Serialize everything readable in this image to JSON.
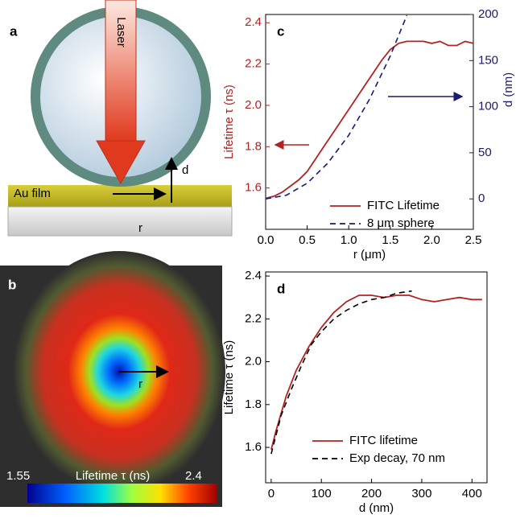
{
  "diagram": {
    "label": "a",
    "laser": "Laser",
    "d": "d",
    "film": "Au film",
    "r": "r"
  },
  "image": {
    "label": "b",
    "r": "r",
    "colorbar_min": 1.55,
    "colorbar_title": "Lifetime τ (ns)",
    "colorbar_max": 2.4
  },
  "chart_data": [
    {
      "type": "line",
      "panel_label": "c",
      "xlabel": "r (μm)",
      "ylabel": "Lifetime τ (ns)",
      "y2label": "d (nm)",
      "y_axis_color": "#b22222",
      "y2_axis_color": "#1a1a6e",
      "xlim": [
        0,
        2.5
      ],
      "xticks": [
        {
          "value": 0,
          "label": "0.0"
        },
        0.5,
        {
          "value": 1,
          "label": "1.0"
        },
        1.5,
        {
          "value": 2,
          "label": "2.0"
        },
        2.5
      ],
      "ylim": [
        1.4,
        2.44
      ],
      "yticks": [
        1.6,
        1.8,
        {
          "value": 2,
          "label": "2.0"
        },
        2.2,
        2.4
      ],
      "y2lim": [
        -33,
        200
      ],
      "y2ticks": [
        0,
        50,
        100,
        150,
        200
      ],
      "legend": "lower right",
      "series": [
        {
          "name": "FITC Lifetime",
          "color": "#b22222",
          "dashed": false,
          "axis": "y",
          "x": [
            0,
            0.1,
            0.2,
            0.3,
            0.4,
            0.5,
            0.6,
            0.7,
            0.8,
            0.9,
            1.0,
            1.1,
            1.2,
            1.3,
            1.4,
            1.5,
            1.6,
            1.7,
            1.8,
            1.9,
            2.0,
            2.1,
            2.2,
            2.3,
            2.4,
            2.5
          ],
          "values": [
            1.55,
            1.56,
            1.58,
            1.61,
            1.64,
            1.68,
            1.74,
            1.8,
            1.86,
            1.92,
            1.98,
            2.04,
            2.1,
            2.16,
            2.22,
            2.27,
            2.3,
            2.31,
            2.31,
            2.31,
            2.3,
            2.31,
            2.29,
            2.29,
            2.31,
            2.3
          ]
        },
        {
          "name": "8 μm sphere",
          "color": "#1a1a6e",
          "dashed": true,
          "axis": "y2",
          "x": [
            0,
            0.25,
            0.5,
            0.75,
            1.0,
            1.25,
            1.5,
            1.7
          ],
          "values": [
            0,
            4,
            17,
            39,
            69,
            108,
            155,
            199
          ]
        }
      ]
    },
    {
      "type": "line",
      "panel_label": "d",
      "xlabel": "d (nm)",
      "ylabel": "Lifetime τ (ns)",
      "xlim": [
        -11,
        430
      ],
      "xticks": [
        0,
        100,
        200,
        300,
        400
      ],
      "ylim": [
        1.435,
        2.419
      ],
      "yticks": [
        1.6,
        1.8,
        {
          "value": 2,
          "label": "2.0"
        },
        2.2,
        2.4
      ],
      "legend": "lower right",
      "series": [
        {
          "name": "FITC lifetime",
          "color": "#b22222",
          "dashed": false,
          "x": [
            0,
            10,
            20,
            30,
            50,
            75,
            100,
            125,
            150,
            175,
            200,
            225,
            250,
            275,
            300,
            325,
            350,
            375,
            400,
            420
          ],
          "values": [
            1.59,
            1.68,
            1.76,
            1.84,
            1.96,
            2.07,
            2.16,
            2.23,
            2.28,
            2.31,
            2.31,
            2.3,
            2.31,
            2.31,
            2.29,
            2.28,
            2.29,
            2.3,
            2.29,
            2.29
          ]
        },
        {
          "name": "Exp decay, 70 nm",
          "color": "#000000",
          "dashed": true,
          "x": [
            0,
            20,
            40,
            60,
            80,
            100,
            125,
            150,
            175,
            200,
            225,
            250,
            280
          ],
          "values": [
            1.57,
            1.75,
            1.87,
            1.98,
            2.08,
            2.14,
            2.2,
            2.24,
            2.27,
            2.29,
            2.3,
            2.32,
            2.33
          ]
        }
      ]
    }
  ]
}
